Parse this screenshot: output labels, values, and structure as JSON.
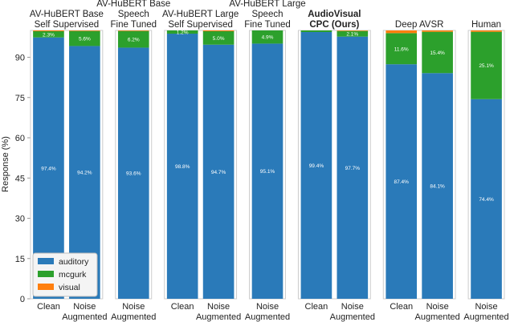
{
  "chart_data": {
    "type": "bar",
    "stacked": true,
    "ylabel": "Response (%)",
    "ylim": [
      0,
      100
    ],
    "yticks": [
      0,
      15,
      30,
      45,
      60,
      75,
      90
    ],
    "legend": "lower left",
    "series": [
      {
        "name": "auditory",
        "color": "#2a7ab9"
      },
      {
        "name": "mcgurk",
        "color": "#2ca02c"
      },
      {
        "name": "visual",
        "color": "#ff7f0e"
      }
    ],
    "panels": [
      {
        "title": [
          "AV-HuBERT Base",
          "Self Supervised"
        ],
        "categories": [
          [
            "Clean"
          ],
          [
            "Noise",
            "Augmented"
          ]
        ],
        "series": [
          {
            "values": [
              97.4,
              94.2
            ],
            "value_labels": [
              "97.4%",
              "94.2%"
            ]
          },
          {
            "values": [
              2.3,
              5.6
            ],
            "value_labels": [
              "2.3%",
              "5.6%"
            ]
          },
          {
            "values": [
              0.3,
              0.2
            ],
            "value_labels": [
              null,
              null
            ]
          }
        ]
      },
      {
        "title": [
          "AV-HuBERT Base",
          "Speech",
          "Fine Tuned"
        ],
        "categories": [
          [
            "Noise",
            "Augmented"
          ]
        ],
        "series": [
          {
            "values": [
              93.6
            ],
            "value_labels": [
              "93.6%"
            ]
          },
          {
            "values": [
              6.2
            ],
            "value_labels": [
              "6.2%"
            ]
          },
          {
            "values": [
              0.2
            ],
            "value_labels": [
              null
            ]
          }
        ]
      },
      {
        "title": [
          "AV-HuBERT Large",
          "Self Supervised"
        ],
        "categories": [
          [
            "Clean"
          ],
          [
            "Noise",
            "Augmented"
          ]
        ],
        "series": [
          {
            "values": [
              98.8,
              94.7
            ],
            "value_labels": [
              "98.8%",
              "94.7%"
            ]
          },
          {
            "values": [
              1.2,
              5.0
            ],
            "value_labels": [
              "1.2%",
              "5.0%"
            ]
          },
          {
            "values": [
              0,
              0.3
            ],
            "value_labels": [
              null,
              null
            ]
          }
        ]
      },
      {
        "title": [
          "AV-HuBERT Large",
          "Speech",
          "Fine Tuned"
        ],
        "categories": [
          [
            "Noise",
            "Augmented"
          ]
        ],
        "series": [
          {
            "values": [
              95.1
            ],
            "value_labels": [
              "95.1%"
            ]
          },
          {
            "values": [
              4.9
            ],
            "value_labels": [
              "4.9%"
            ]
          },
          {
            "values": [
              0
            ],
            "value_labels": [
              null
            ]
          }
        ]
      },
      {
        "title": [
          "AudioVisual",
          "CPC (Ours)"
        ],
        "title_bold": true,
        "categories": [
          [
            "Clean"
          ],
          [
            "Noise",
            "Augmented"
          ]
        ],
        "series": [
          {
            "values": [
              99.4,
              97.7
            ],
            "value_labels": [
              "99.4%",
              "97.7%"
            ]
          },
          {
            "values": [
              0.6,
              2.1
            ],
            "value_labels": [
              null,
              "2.1%"
            ]
          },
          {
            "values": [
              0,
              0.2
            ],
            "value_labels": [
              null,
              null
            ]
          }
        ]
      },
      {
        "title": [
          "Deep AVSR"
        ],
        "categories": [
          [
            "Clean"
          ],
          [
            "Noise",
            "Augmented"
          ]
        ],
        "series": [
          {
            "values": [
              87.4,
              84.1
            ],
            "value_labels": [
              "87.4%",
              "84.1%"
            ]
          },
          {
            "values": [
              11.6,
              15.4
            ],
            "value_labels": [
              "11.6%",
              "15.4%"
            ]
          },
          {
            "values": [
              1.0,
              0.5
            ],
            "value_labels": [
              null,
              null
            ]
          }
        ]
      },
      {
        "title": [
          "Human"
        ],
        "categories": [
          [
            "Noise",
            "Augmented"
          ]
        ],
        "series": [
          {
            "values": [
              74.4
            ],
            "value_labels": [
              "74.4%"
            ]
          },
          {
            "values": [
              25.1
            ],
            "value_labels": [
              "25.1%"
            ]
          },
          {
            "values": [
              0.5
            ],
            "value_labels": [
              null
            ]
          }
        ]
      }
    ]
  }
}
